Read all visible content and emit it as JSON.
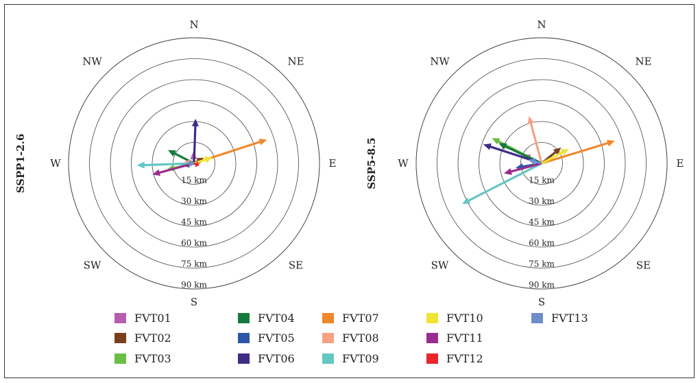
{
  "chart_data": [
    {
      "type": "vector-rose",
      "panel_label": "SSPP1-2.6",
      "directions": [
        "N",
        "NE",
        "E",
        "SE",
        "S",
        "SW",
        "W",
        "NW"
      ],
      "ring_labels": [
        "15 km",
        "30 km",
        "45 km",
        "60 km",
        "75 km",
        "90 km"
      ],
      "rmax": 90,
      "vectors": [
        {
          "series": "FVT01",
          "direction_deg": 355,
          "distance_km": 8
        },
        {
          "series": "FVT02",
          "direction_deg": 60,
          "distance_km": 8
        },
        {
          "series": "FVT03",
          "direction_deg": 257,
          "distance_km": 20
        },
        {
          "series": "FVT04",
          "direction_deg": 297,
          "distance_km": 21
        },
        {
          "series": "FVT05",
          "direction_deg": 260,
          "distance_km": 9
        },
        {
          "series": "FVT06",
          "direction_deg": 2,
          "distance_km": 32
        },
        {
          "series": "FVT07",
          "direction_deg": 72,
          "distance_km": 55
        },
        {
          "series": "FVT08",
          "direction_deg": 280,
          "distance_km": 7
        },
        {
          "series": "FVT09",
          "direction_deg": 268,
          "distance_km": 41
        },
        {
          "series": "FVT10",
          "direction_deg": 72,
          "distance_km": 14
        },
        {
          "series": "FVT11",
          "direction_deg": 255,
          "distance_km": 31
        },
        {
          "series": "FVT12",
          "direction_deg": 110,
          "distance_km": 4
        },
        {
          "series": "FVT13",
          "direction_deg": 270,
          "distance_km": 5
        }
      ]
    },
    {
      "type": "vector-rose",
      "panel_label": "SSP5-8.5",
      "directions": [
        "N",
        "NE",
        "E",
        "SE",
        "S",
        "SW",
        "W",
        "NW"
      ],
      "ring_labels": [
        "15 km",
        "30 km",
        "45 km",
        "60 km",
        "75 km",
        "90 km"
      ],
      "rmax": 90,
      "vectors": [
        {
          "series": "FVT01",
          "direction_deg": 295,
          "distance_km": 15
        },
        {
          "series": "FVT02",
          "direction_deg": 51,
          "distance_km": 18
        },
        {
          "series": "FVT03",
          "direction_deg": 297,
          "distance_km": 40
        },
        {
          "series": "FVT04",
          "direction_deg": 295,
          "distance_km": 34
        },
        {
          "series": "FVT05",
          "direction_deg": 260,
          "distance_km": 19
        },
        {
          "series": "FVT06",
          "direction_deg": 288,
          "distance_km": 44
        },
        {
          "series": "FVT07",
          "direction_deg": 73,
          "distance_km": 55
        },
        {
          "series": "FVT08",
          "direction_deg": 345,
          "distance_km": 35
        },
        {
          "series": "FVT09",
          "direction_deg": 243,
          "distance_km": 64
        },
        {
          "series": "FVT10",
          "direction_deg": 62,
          "distance_km": 22
        },
        {
          "series": "FVT11",
          "direction_deg": 255,
          "distance_km": 28
        },
        {
          "series": "FVT12",
          "direction_deg": 270,
          "distance_km": 0
        },
        {
          "series": "FVT13",
          "direction_deg": 285,
          "distance_km": 10
        }
      ]
    }
  ],
  "legend": [
    {
      "label": "FVT01",
      "color": "#b65db0"
    },
    {
      "label": "FVT02",
      "color": "#7b3f1e"
    },
    {
      "label": "FVT03",
      "color": "#6abd45"
    },
    {
      "label": "FVT04",
      "color": "#157a3c"
    },
    {
      "label": "FVT05",
      "color": "#2b55a6"
    },
    {
      "label": "FVT06",
      "color": "#3e2c86"
    },
    {
      "label": "FVT07",
      "color": "#f0882b"
    },
    {
      "label": "FVT08",
      "color": "#f4a283"
    },
    {
      "label": "FVT09",
      "color": "#63c7c2"
    },
    {
      "label": "FVT10",
      "color": "#eee534"
    },
    {
      "label": "FVT11",
      "color": "#9b2c8d"
    },
    {
      "label": "FVT12",
      "color": "#e8262b"
    },
    {
      "label": "FVT13",
      "color": "#6e8ec9"
    }
  ]
}
